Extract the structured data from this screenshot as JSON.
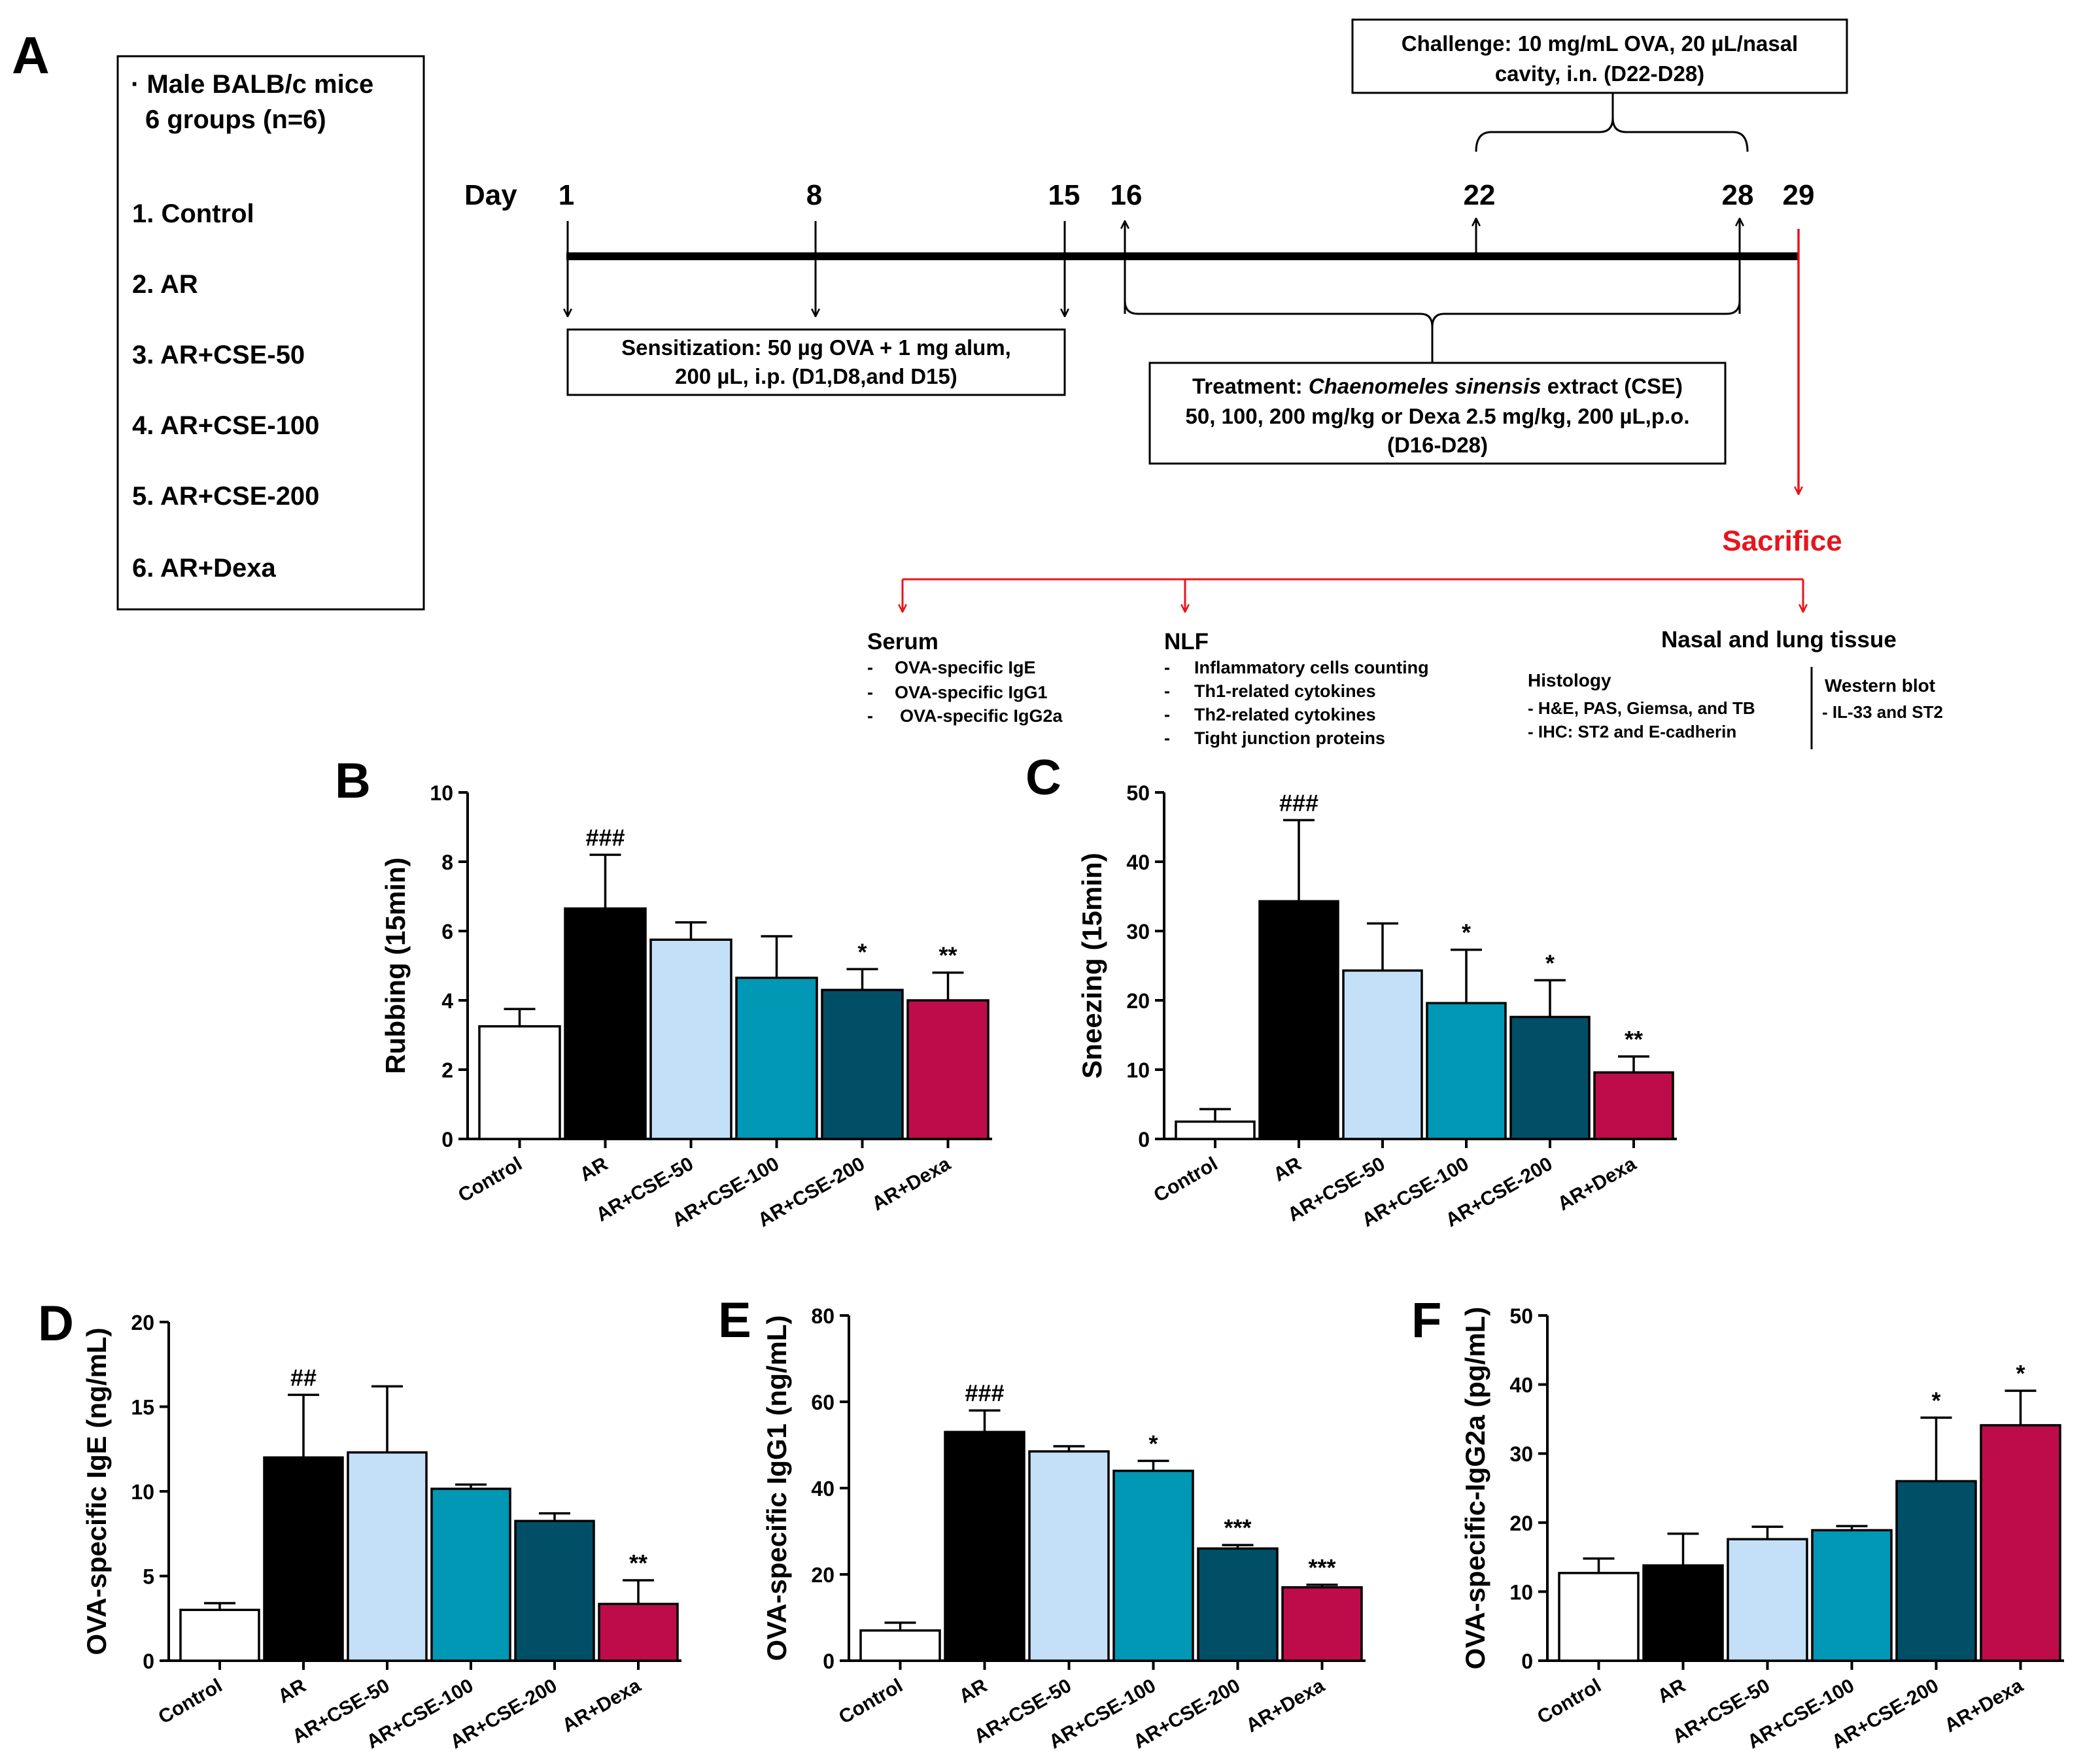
{
  "panels": {
    "A": "A",
    "B": "B",
    "C": "C",
    "D": "D",
    "E": "E",
    "F": "F"
  },
  "design": {
    "groups_box": {
      "title_line1": "· Male BALB/c mice",
      "title_line2": "6 groups (n=6)",
      "groups": [
        "1. Control",
        "2. AR",
        "3. AR+CSE-50",
        "4. AR+CSE-100",
        "5. AR+CSE-200",
        "6. AR+Dexa"
      ]
    },
    "timeline": {
      "day_label": "Day",
      "days": [
        "1",
        "8",
        "15",
        "16",
        "22",
        "28",
        "29"
      ],
      "challenge_line1": "Challenge: 10 mg/mL OVA, 20 µL/nasal",
      "challenge_line2": "cavity, i.n. (D22-D28)",
      "sensitization_line1": "Sensitization: 50 µg OVA + 1 mg alum,",
      "sensitization_line2": "200 µL, i.p. (D1,D8,and D15)",
      "treatment_prefix": "Treatment: ",
      "treatment_italic": "Chaenomeles sinensis",
      "treatment_suffix": " extract (CSE)",
      "treatment_line2": "50, 100, 200 mg/kg or Dexa 2.5 mg/kg, 200 µL,p.o.",
      "treatment_line3": "(D16-D28)",
      "sacrifice": "Sacrifice",
      "accent_color": "#e8141c"
    },
    "outcomes": {
      "serum_title": "Serum",
      "serum_items": [
        "OVA-specific IgE",
        "OVA-specific IgG1",
        "OVA-specific IgG2a"
      ],
      "nlf_title": "NLF",
      "nlf_items": [
        "Inflammatory cells counting",
        "Th1-related cytokines",
        "Th2-related cytokines",
        "Tight junction proteins"
      ],
      "tissue_title": "Nasal and lung tissue",
      "histology_title": "Histology",
      "histology_items": [
        "- H&E, PAS, Giemsa, and TB",
        "- IHC: ST2 and E-cadherin"
      ],
      "western_title": "Western blot",
      "western_items": [
        "- IL-33 and ST2"
      ]
    }
  },
  "chart_data": [
    {
      "panel": "B",
      "type": "bar",
      "ylabel": "Rubbing (15min)",
      "ylim": [
        0,
        10
      ],
      "yticks": [
        0,
        2,
        4,
        6,
        8,
        10
      ],
      "categories": [
        "Control",
        "AR",
        "AR+CSE-50",
        "AR+CSE-100",
        "AR+CSE-200",
        "AR+Dexa"
      ],
      "values": [
        3.25,
        6.65,
        5.75,
        4.65,
        4.3,
        4.0
      ],
      "errors": [
        0.5,
        1.55,
        0.5,
        1.2,
        0.6,
        0.8
      ],
      "annotations": [
        "",
        "###",
        "",
        "",
        "*",
        "**"
      ]
    },
    {
      "panel": "C",
      "type": "bar",
      "ylabel": "Sneezing (15min)",
      "ylim": [
        0,
        50
      ],
      "yticks": [
        0,
        10,
        20,
        30,
        40,
        50
      ],
      "categories": [
        "Control",
        "AR",
        "AR+CSE-50",
        "AR+CSE-100",
        "AR+CSE-200",
        "AR+Dexa"
      ],
      "values": [
        2.5,
        34.3,
        24.3,
        19.6,
        17.6,
        9.6
      ],
      "errors": [
        1.8,
        11.7,
        6.8,
        7.7,
        5.3,
        2.3
      ],
      "annotations": [
        "",
        "###",
        "",
        "*",
        "*",
        "**"
      ]
    },
    {
      "panel": "D",
      "type": "bar",
      "ylabel": "OVA-specific IgE (ng/mL)",
      "ylim": [
        0,
        20
      ],
      "yticks": [
        0,
        5,
        10,
        15,
        20
      ],
      "categories": [
        "Control",
        "AR",
        "AR+CSE-50",
        "AR+CSE-100",
        "AR+CSE-200",
        "AR+Dexa"
      ],
      "values": [
        3.0,
        12.0,
        12.3,
        10.15,
        8.25,
        3.35
      ],
      "errors": [
        0.4,
        3.7,
        3.9,
        0.25,
        0.45,
        1.4
      ],
      "annotations": [
        "",
        "##",
        "",
        "",
        "",
        "**"
      ]
    },
    {
      "panel": "E",
      "type": "bar",
      "ylabel": "OVA-specific IgG1 (ng/mL)",
      "ylim": [
        0,
        80
      ],
      "yticks": [
        0,
        20,
        40,
        60,
        80
      ],
      "categories": [
        "Control",
        "AR",
        "AR+CSE-50",
        "AR+CSE-100",
        "AR+CSE-200",
        "AR+Dexa"
      ],
      "values": [
        7.0,
        53.0,
        48.5,
        44.0,
        26.0,
        17.0
      ],
      "errors": [
        1.8,
        5.0,
        1.2,
        2.3,
        0.8,
        0.6
      ],
      "annotations": [
        "",
        "###",
        "",
        "*",
        "***",
        "***"
      ]
    },
    {
      "panel": "F",
      "type": "bar",
      "ylabel": "OVA-specific-IgG2a (pg/mL)",
      "ylim": [
        0,
        50
      ],
      "yticks": [
        0,
        10,
        20,
        30,
        40,
        50
      ],
      "categories": [
        "Control",
        "AR",
        "AR+CSE-50",
        "AR+CSE-100",
        "AR+CSE-200",
        "AR+Dexa"
      ],
      "values": [
        12.7,
        13.8,
        17.6,
        18.9,
        26.0,
        34.1
      ],
      "errors": [
        2.1,
        4.6,
        1.8,
        0.6,
        9.2,
        5.0
      ],
      "annotations": [
        "",
        "",
        "",
        "",
        "*",
        "*"
      ]
    }
  ],
  "bar_colors": [
    "#ffffff",
    "#000000",
    "#c4e0f8",
    "#0098b4",
    "#004f67",
    "#be0c4b"
  ]
}
